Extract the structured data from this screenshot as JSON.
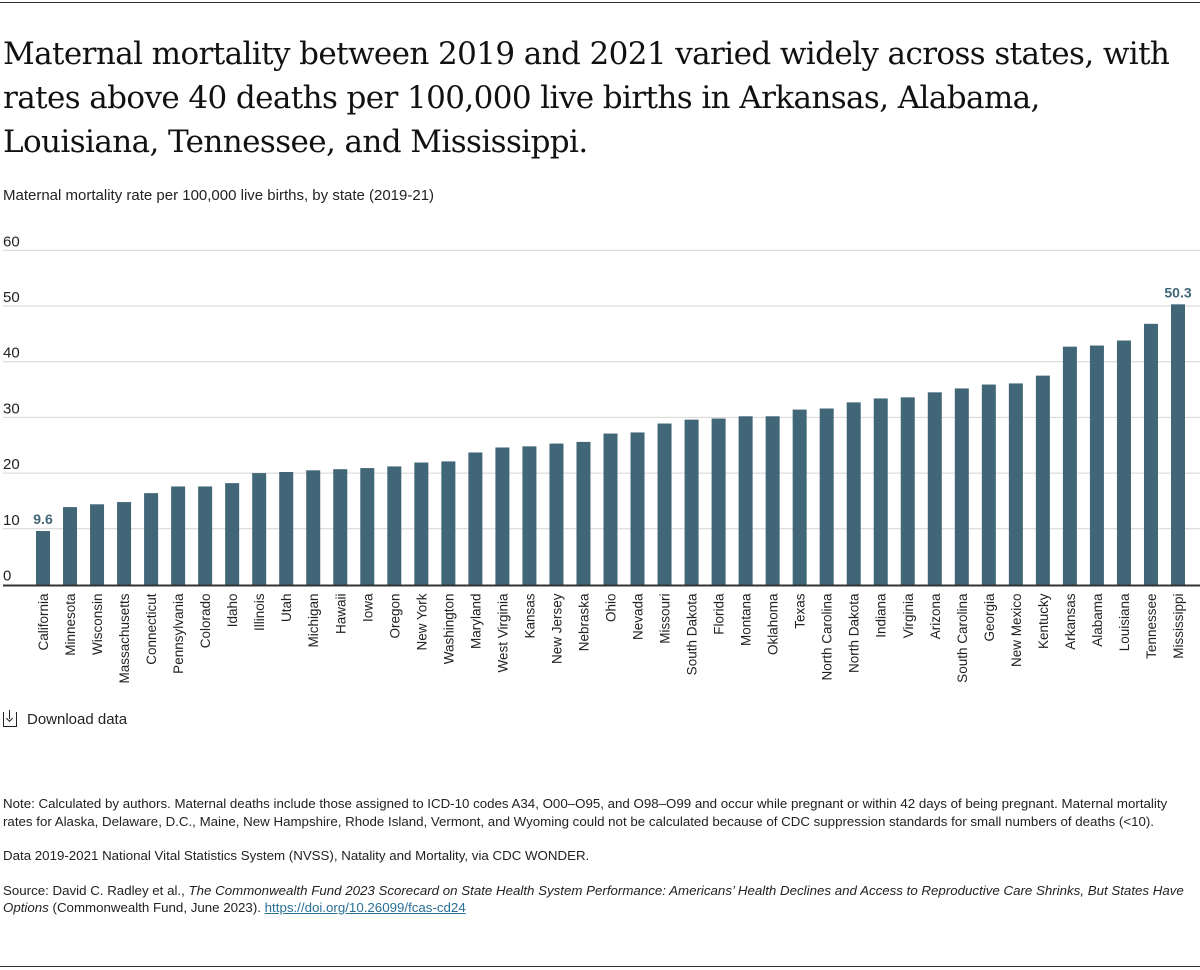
{
  "title": "Maternal mortality between 2019 and 2021 varied widely across states, with rates above 40 deaths per 100,000 live births in Arkansas, Alabama, Louisiana, Tennessee, and Mississippi.",
  "subtitle": "Maternal mortality rate per 100,000 live births, by state (2019-21)",
  "download_label": "Download data",
  "download_icon": "download-icon",
  "notes": {
    "note": "Note: Calculated by authors. Maternal deaths include those assigned to ICD-10 codes A34, O00–O95, and O98–O99 and occur while pregnant or within 42 days of being pregnant. Maternal mortality rates for Alaska, Delaware, D.C., Maine, New Hampshire, Rhode Island, Vermont, and Wyoming could not be calculated because of CDC suppression standards for small numbers of deaths (<10).",
    "data": "Data 2019-2021 National Vital Statistics System (NVSS), Natality and Mortality, via CDC WONDER.",
    "source_prefix": "Source: David C. Radley et al., ",
    "source_title": "The Commonwealth Fund 2023 Scorecard on State Health System Performance: Americans’ Health Declines and Access to Reproductive Care Shrinks, But States Have Options",
    "source_suffix": " (Commonwealth Fund, June 2023). ",
    "source_link": "https://doi.org/10.26099/fcas-cd24"
  },
  "chart_data": {
    "type": "bar",
    "title": "",
    "xlabel": "",
    "ylabel": "",
    "ylim": [
      0,
      60
    ],
    "yticks": [
      "0",
      "10",
      "20",
      "30",
      "40",
      "50",
      "60"
    ],
    "grid": true,
    "bar_color": "#416677",
    "label_color": "#416677",
    "categories": [
      "California",
      "Minnesota",
      "Wisconsin",
      "Massachusetts",
      "Connecticut",
      "Pennsylvania",
      "Colorado",
      "Idaho",
      "Illinois",
      "Utah",
      "Michigan",
      "Hawaii",
      "Iowa",
      "Oregon",
      "New York",
      "Washington",
      "Maryland",
      "West Virginia",
      "Kansas",
      "New Jersey",
      "Nebraska",
      "Ohio",
      "Nevada",
      "Missouri",
      "South Dakota",
      "Florida",
      "Montana",
      "Oklahoma",
      "Texas",
      "North Carolina",
      "North Dakota",
      "Indiana",
      "Virginia",
      "Arizona",
      "South Carolina",
      "Georgia",
      "New Mexico",
      "Kentucky",
      "Arkansas",
      "Alabama",
      "Louisiana",
      "Tennessee",
      "Mississippi"
    ],
    "values": [
      9.6,
      13.9,
      14.4,
      14.8,
      16.4,
      17.6,
      17.6,
      18.2,
      20.0,
      20.2,
      20.5,
      20.7,
      20.9,
      21.2,
      21.9,
      22.1,
      23.7,
      24.6,
      24.8,
      25.3,
      25.6,
      27.1,
      27.3,
      28.9,
      29.6,
      29.8,
      30.2,
      30.2,
      31.4,
      31.6,
      32.7,
      33.4,
      33.6,
      34.5,
      35.2,
      35.9,
      36.1,
      37.5,
      42.7,
      42.9,
      43.8,
      46.8,
      50.3
    ],
    "data_labels": {
      "California": "9.6",
      "Mississippi": "50.3"
    }
  }
}
